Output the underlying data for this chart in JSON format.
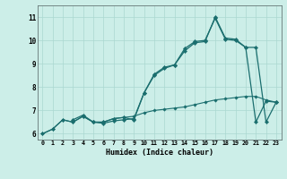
{
  "xlabel": "Humidex (Indice chaleur)",
  "background_color": "#cceee8",
  "grid_color": "#aad8d0",
  "line_color": "#1a6e6e",
  "xlim": [
    -0.5,
    23.5
  ],
  "ylim": [
    5.75,
    11.5
  ],
  "yticks": [
    6,
    7,
    8,
    9,
    10,
    11
  ],
  "xticks": [
    0,
    1,
    2,
    3,
    4,
    5,
    6,
    7,
    8,
    9,
    10,
    11,
    12,
    13,
    14,
    15,
    16,
    17,
    18,
    19,
    20,
    21,
    22,
    23
  ],
  "line1_x": [
    0,
    1,
    2,
    3,
    4,
    5,
    6,
    7,
    8,
    9,
    10,
    11,
    12,
    13,
    14,
    15,
    16,
    17,
    18,
    19,
    20,
    21,
    22,
    23
  ],
  "line1_y": [
    6.0,
    6.2,
    6.6,
    6.5,
    6.75,
    6.5,
    6.5,
    6.65,
    6.7,
    6.75,
    6.9,
    7.0,
    7.05,
    7.1,
    7.15,
    7.25,
    7.35,
    7.45,
    7.5,
    7.55,
    7.6,
    7.6,
    7.45,
    7.35
  ],
  "line2_x": [
    0,
    1,
    2,
    3,
    4,
    5,
    6,
    7,
    8,
    9,
    10,
    11,
    12,
    13,
    14,
    15,
    16,
    17,
    18,
    19,
    20,
    21,
    22,
    23
  ],
  "line2_y": [
    6.0,
    6.2,
    6.6,
    6.5,
    6.75,
    6.5,
    6.45,
    6.55,
    6.6,
    6.65,
    7.75,
    8.55,
    8.85,
    8.95,
    9.65,
    9.95,
    10.0,
    10.95,
    10.05,
    10.0,
    9.7,
    6.5,
    7.4,
    7.35
  ],
  "line3_x": [
    3,
    4,
    5,
    6,
    7,
    8,
    9,
    10,
    11,
    12,
    13,
    14,
    15,
    16,
    17,
    18,
    19,
    20,
    21,
    22,
    23
  ],
  "line3_y": [
    6.6,
    6.8,
    6.5,
    6.5,
    6.65,
    6.7,
    6.6,
    7.75,
    8.5,
    8.8,
    8.95,
    9.55,
    9.9,
    9.95,
    11.0,
    10.1,
    10.05,
    9.7,
    9.7,
    6.5,
    7.35
  ]
}
